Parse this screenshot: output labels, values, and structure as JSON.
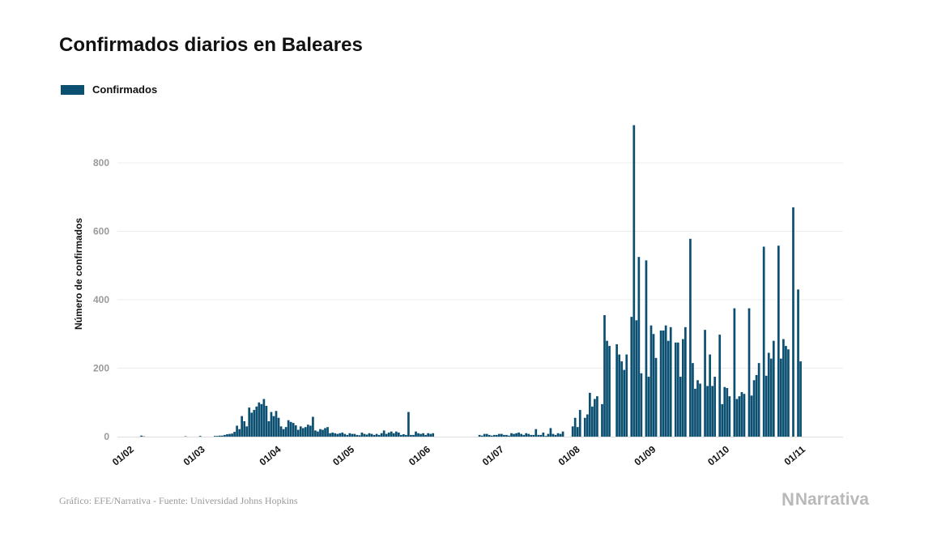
{
  "chart_data": {
    "type": "bar",
    "title": "Confirmados diarios en Baleares",
    "ylabel": "Número de confirmados",
    "xlabel": "",
    "ylim": [
      0,
      950
    ],
    "yticks": [
      0,
      200,
      400,
      600,
      800
    ],
    "grid": true,
    "legend_position": "top-left",
    "x_start": "2020-02-01",
    "x_tick_labels": [
      "01/02",
      "01/03",
      "01/04",
      "01/05",
      "01/06",
      "01/07",
      "01/08",
      "01/09",
      "01/10",
      "01/11"
    ],
    "x_tick_dates": [
      "2020-02-01",
      "2020-03-01",
      "2020-04-01",
      "2020-05-01",
      "2020-06-01",
      "2020-07-01",
      "2020-08-01",
      "2020-09-01",
      "2020-10-01",
      "2020-11-01"
    ],
    "series": [
      {
        "name": "Confirmados",
        "color": "#0b4f71",
        "values": [
          0,
          0,
          0,
          0,
          0,
          0,
          0,
          0,
          0,
          3,
          1,
          0,
          0,
          0,
          0,
          0,
          0,
          0,
          0,
          0,
          0,
          0,
          0,
          0,
          0,
          0,
          0,
          1,
          0,
          0,
          0,
          0,
          0,
          2,
          0,
          0,
          0,
          0,
          0,
          2,
          2,
          3,
          3,
          5,
          7,
          8,
          9,
          14,
          32,
          22,
          60,
          45,
          30,
          85,
          70,
          78,
          88,
          100,
          95,
          110,
          90,
          45,
          72,
          60,
          75,
          55,
          30,
          22,
          28,
          48,
          43,
          40,
          33,
          20,
          30,
          25,
          28,
          35,
          32,
          58,
          18,
          15,
          22,
          20,
          25,
          28,
          10,
          12,
          10,
          8,
          10,
          12,
          8,
          5,
          10,
          8,
          8,
          5,
          4,
          12,
          8,
          6,
          10,
          8,
          5,
          8,
          5,
          10,
          18,
          8,
          12,
          15,
          10,
          15,
          12,
          5,
          7,
          5,
          72,
          5,
          5,
          15,
          10,
          8,
          10,
          5,
          10,
          8,
          10,
          0,
          0,
          0,
          0,
          0,
          0,
          0,
          0,
          0,
          0,
          0,
          0,
          0,
          0,
          0,
          0,
          0,
          0,
          5,
          3,
          8,
          8,
          5,
          3,
          5,
          5,
          8,
          8,
          5,
          5,
          3,
          10,
          8,
          10,
          12,
          8,
          5,
          10,
          8,
          5,
          5,
          22,
          5,
          5,
          12,
          2,
          8,
          25,
          8,
          5,
          10,
          8,
          15,
          0,
          0,
          0,
          30,
          55,
          28,
          78,
          0,
          55,
          65,
          128,
          88,
          110,
          118,
          0,
          95,
          355,
          280,
          265,
          0,
          0,
          270,
          240,
          220,
          195,
          240,
          0,
          350,
          910,
          340,
          525,
          185,
          0,
          515,
          175,
          325,
          300,
          230,
          0,
          310,
          310,
          325,
          280,
          320,
          0,
          275,
          275,
          175,
          285,
          320,
          0,
          578,
          215,
          140,
          165,
          155,
          0,
          312,
          148,
          240,
          148,
          175,
          0,
          298,
          95,
          145,
          142,
          118,
          0,
          375,
          110,
          118,
          130,
          125,
          0,
          375,
          120,
          165,
          180,
          215,
          0,
          555,
          178,
          245,
          228,
          280,
          0,
          558,
          228,
          285,
          265,
          255,
          0,
          670,
          0,
          430,
          220
        ]
      }
    ]
  },
  "footer": {
    "source": "Gráfico: EFE/Narrativa - Fuente: Universidad Johns Hopkins",
    "brand_mark": "N",
    "brand_name": "Narrativa"
  }
}
